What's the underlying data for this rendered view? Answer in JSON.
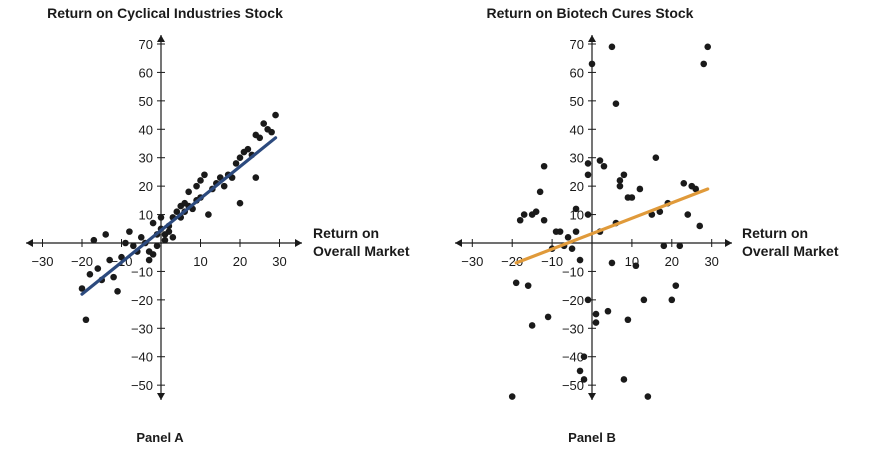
{
  "chart_data": [
    {
      "type": "scatter",
      "title": "Return on Cyclical Industries Stock",
      "xlabel": [
        "Return on",
        "Overall Market"
      ],
      "panel_label": "Panel A",
      "xlim": [
        -30,
        35
      ],
      "ylim": [
        -55,
        72
      ],
      "xticks": [
        -30,
        -20,
        -10,
        10,
        20,
        30
      ],
      "yticks": [
        70,
        60,
        50,
        40,
        30,
        20,
        10,
        -10,
        -20,
        -30,
        -40,
        -50
      ],
      "line_color": "#2c4a7e",
      "fit_line": {
        "x": [
          -20,
          29
        ],
        "y": [
          -18,
          37
        ]
      },
      "points": [
        [
          -19,
          -27
        ],
        [
          -20,
          -16
        ],
        [
          -18,
          -11
        ],
        [
          -17,
          1
        ],
        [
          -16,
          -9
        ],
        [
          -15,
          -13
        ],
        [
          -14,
          3
        ],
        [
          -13,
          -6
        ],
        [
          -12,
          -12
        ],
        [
          -11,
          -17
        ],
        [
          -10,
          -5
        ],
        [
          -9,
          0
        ],
        [
          -8,
          4
        ],
        [
          -7,
          -1
        ],
        [
          -6,
          -3
        ],
        [
          -5,
          2
        ],
        [
          -4,
          0
        ],
        [
          -3,
          -6
        ],
        [
          -3,
          -3
        ],
        [
          -2,
          -4
        ],
        [
          -2,
          7
        ],
        [
          -1,
          -1
        ],
        [
          -1,
          3
        ],
        [
          0,
          9
        ],
        [
          0,
          5
        ],
        [
          1,
          1
        ],
        [
          1,
          3
        ],
        [
          2,
          6
        ],
        [
          2,
          4
        ],
        [
          3,
          9
        ],
        [
          3,
          2
        ],
        [
          4,
          11
        ],
        [
          5,
          9
        ],
        [
          5,
          13
        ],
        [
          6,
          14
        ],
        [
          6,
          11
        ],
        [
          7,
          18
        ],
        [
          7,
          13
        ],
        [
          8,
          12
        ],
        [
          9,
          15
        ],
        [
          9,
          20
        ],
        [
          10,
          22
        ],
        [
          10,
          16
        ],
        [
          11,
          24
        ],
        [
          12,
          10
        ],
        [
          13,
          19
        ],
        [
          14,
          21
        ],
        [
          15,
          23
        ],
        [
          16,
          20
        ],
        [
          17,
          24
        ],
        [
          18,
          23
        ],
        [
          19,
          28
        ],
        [
          20,
          14
        ],
        [
          20,
          30
        ],
        [
          21,
          32
        ],
        [
          22,
          33
        ],
        [
          23,
          31
        ],
        [
          24,
          23
        ],
        [
          24,
          38
        ],
        [
          25,
          37
        ],
        [
          26,
          42
        ],
        [
          27,
          40
        ],
        [
          28,
          39
        ],
        [
          29,
          45
        ]
      ]
    },
    {
      "type": "scatter",
      "title": "Return on Biotech Cures Stock",
      "xlabel": [
        "Return on",
        "Overall Market"
      ],
      "panel_label": "Panel B",
      "xlim": [
        -30,
        35
      ],
      "ylim": [
        -55,
        72
      ],
      "xticks": [
        -30,
        -20,
        -10,
        10,
        20,
        30
      ],
      "yticks": [
        70,
        60,
        50,
        40,
        30,
        20,
        10,
        -10,
        -20,
        -30,
        -40,
        -50
      ],
      "line_color": "#e09a3a",
      "fit_line": {
        "x": [
          -19,
          29
        ],
        "y": [
          -7,
          19
        ]
      },
      "points": [
        [
          -20,
          -54
        ],
        [
          -19,
          -14
        ],
        [
          -18,
          8
        ],
        [
          -17,
          10
        ],
        [
          -16,
          -15
        ],
        [
          -15,
          -29
        ],
        [
          -15,
          10
        ],
        [
          -14,
          11
        ],
        [
          -13,
          18
        ],
        [
          -12,
          27
        ],
        [
          -12,
          8
        ],
        [
          -11,
          -26
        ],
        [
          -10,
          -2
        ],
        [
          -9,
          4
        ],
        [
          -8,
          4
        ],
        [
          -7,
          -1
        ],
        [
          -6,
          2
        ],
        [
          -5,
          -2
        ],
        [
          -4,
          4
        ],
        [
          -4,
          12
        ],
        [
          -3,
          -6
        ],
        [
          -3,
          -45
        ],
        [
          -2,
          -48
        ],
        [
          -2,
          -40
        ],
        [
          -1,
          -20
        ],
        [
          -1,
          24
        ],
        [
          -1,
          10
        ],
        [
          -1,
          28
        ],
        [
          0,
          63
        ],
        [
          1,
          -28
        ],
        [
          1,
          -25
        ],
        [
          2,
          4
        ],
        [
          2,
          29
        ],
        [
          3,
          27
        ],
        [
          4,
          -24
        ],
        [
          5,
          -7
        ],
        [
          5,
          69
        ],
        [
          6,
          49
        ],
        [
          6,
          7
        ],
        [
          7,
          20
        ],
        [
          7,
          22
        ],
        [
          8,
          24
        ],
        [
          8,
          -48
        ],
        [
          9,
          -27
        ],
        [
          9,
          16
        ],
        [
          10,
          16
        ],
        [
          11,
          -8
        ],
        [
          12,
          19
        ],
        [
          13,
          -20
        ],
        [
          14,
          -54
        ],
        [
          15,
          10
        ],
        [
          16,
          30
        ],
        [
          17,
          11
        ],
        [
          18,
          -1
        ],
        [
          19,
          14
        ],
        [
          20,
          -20
        ],
        [
          21,
          -15
        ],
        [
          22,
          -1
        ],
        [
          23,
          21
        ],
        [
          24,
          10
        ],
        [
          25,
          20
        ],
        [
          26,
          19
        ],
        [
          27,
          6
        ],
        [
          28,
          63
        ],
        [
          29,
          69
        ]
      ]
    }
  ]
}
